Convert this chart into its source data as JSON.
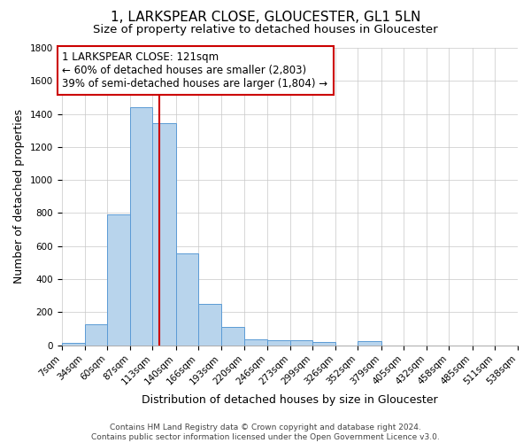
{
  "title": "1, LARKSPEAR CLOSE, GLOUCESTER, GL1 5LN",
  "subtitle": "Size of property relative to detached houses in Gloucester",
  "xlabel": "Distribution of detached houses by size in Gloucester",
  "ylabel": "Number of detached properties",
  "bar_color": "#b8d4ec",
  "bar_edge_color": "#5b9bd5",
  "background_color": "#ffffff",
  "grid_color": "#c8c8c8",
  "annotation_box_color": "#cc0000",
  "vline_color": "#cc0000",
  "vline_x": 121,
  "annotation_text_line1": "1 LARKSPEAR CLOSE: 121sqm",
  "annotation_text_line2": "← 60% of detached houses are smaller (2,803)",
  "annotation_text_line3": "39% of semi-detached houses are larger (1,804) →",
  "bin_edges": [
    7,
    34,
    60,
    87,
    113,
    140,
    166,
    193,
    220,
    246,
    273,
    299,
    326,
    352,
    379,
    405,
    432,
    458,
    485,
    511,
    538
  ],
  "bar_heights": [
    13,
    126,
    790,
    1440,
    1345,
    556,
    249,
    110,
    35,
    30,
    30,
    18,
    0,
    22,
    0,
    0,
    0,
    0,
    0,
    0
  ],
  "xlim": [
    7,
    538
  ],
  "ylim": [
    0,
    1800
  ],
  "yticks": [
    0,
    200,
    400,
    600,
    800,
    1000,
    1200,
    1400,
    1600,
    1800
  ],
  "footer_text": "Contains HM Land Registry data © Crown copyright and database right 2024.\nContains public sector information licensed under the Open Government Licence v3.0.",
  "title_fontsize": 11,
  "subtitle_fontsize": 9.5,
  "tick_label_fontsize": 7.5,
  "ylabel_fontsize": 9,
  "xlabel_fontsize": 9,
  "annotation_fontsize": 8.5,
  "footer_fontsize": 6.5
}
